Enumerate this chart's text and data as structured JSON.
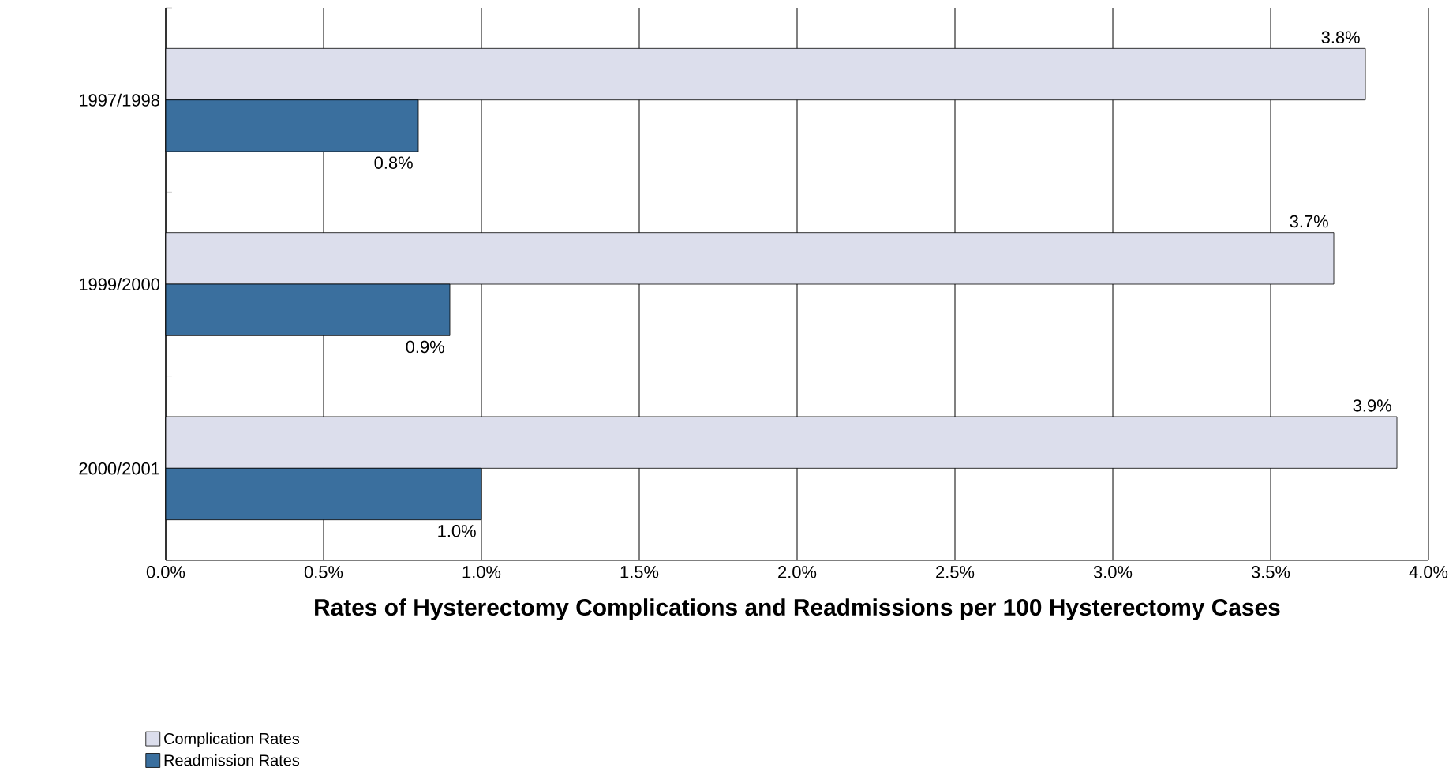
{
  "chart_data": {
    "type": "bar",
    "orientation": "horizontal",
    "xlabel": "**Rates of Hysterectomy Complications and Readmissions per 100 Hysterectomy Cases**",
    "categories": [
      "1997/1998",
      "1999/2000",
      "2000/2001"
    ],
    "series": [
      {
        "name": "Complication Rates",
        "color": "#dcdeec",
        "values": [
          3.8,
          3.7,
          3.9
        ],
        "value_labels": [
          "3.8%",
          "3.7%",
          "3.9%"
        ]
      },
      {
        "name": "Readmission Rates",
        "color": "#3a6f9e",
        "values": [
          0.8,
          0.9,
          1.0
        ],
        "value_labels": [
          "0.8%",
          "0.9%",
          "1.0%"
        ]
      }
    ],
    "xlim": [
      0,
      4
    ],
    "xticks": [
      {
        "value": 0,
        "label": "0.0%"
      },
      {
        "value": 0.5,
        "label": "0.5%"
      },
      {
        "value": 1,
        "label": "1.0%"
      },
      {
        "value": 1.5,
        "label": "1.5%"
      },
      {
        "value": 2,
        "label": "2.0%"
      },
      {
        "value": 2.5,
        "label": "2.5%"
      },
      {
        "value": 3,
        "label": "3.0%"
      },
      {
        "value": 3.5,
        "label": "3.5%"
      },
      {
        "value": 4,
        "label": "4.0%"
      }
    ],
    "grid": "x",
    "legend": "bottom left"
  }
}
